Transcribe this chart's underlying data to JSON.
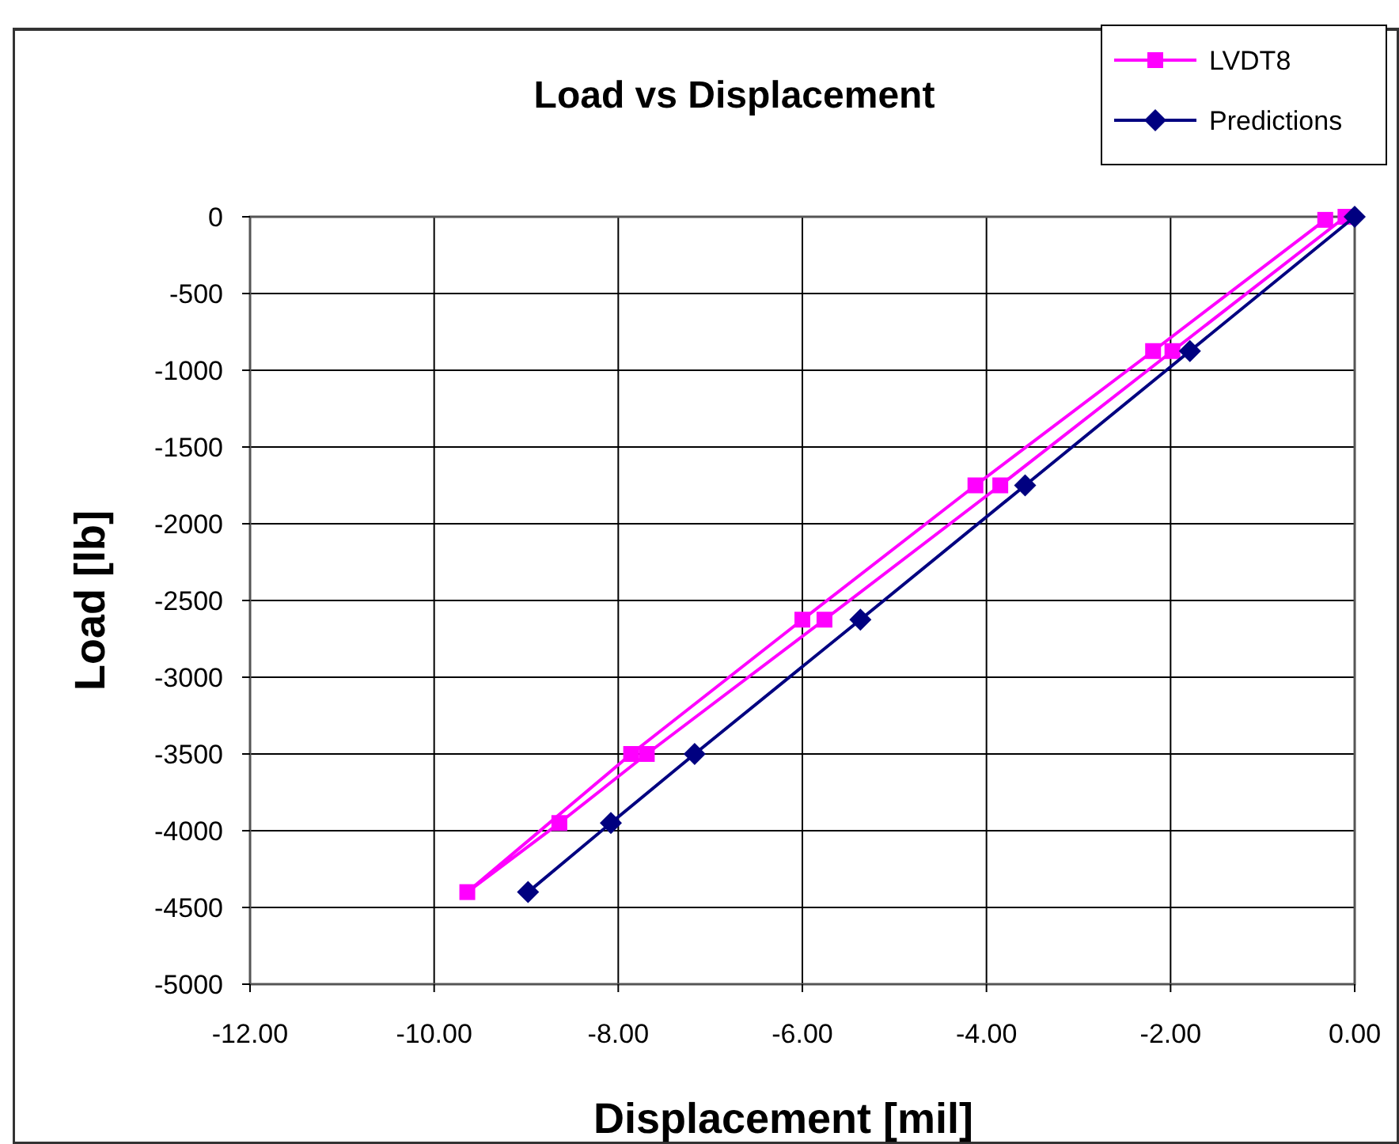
{
  "chart_data": {
    "type": "line",
    "title": "Load vs Displacement",
    "xlabel": "Displacement [mil]",
    "ylabel": "Load [lb]",
    "xlim": [
      -12,
      0
    ],
    "xticks": [
      {
        "value": -12,
        "label": "-12.00"
      },
      {
        "value": -10,
        "label": "-10.00"
      },
      {
        "value": -8,
        "label": "-8.00"
      },
      {
        "value": -6,
        "label": "-6.00"
      },
      {
        "value": -4,
        "label": "-4.00"
      },
      {
        "value": -2,
        "label": "-2.00"
      },
      {
        "value": 0,
        "label": "0.00"
      }
    ],
    "ylim": [
      -5000,
      0
    ],
    "yticks": [
      -5000,
      -4500,
      -4000,
      -3500,
      -3000,
      -2500,
      -2000,
      -1500,
      -1000,
      -500,
      0
    ],
    "grid": true,
    "legend": "top right",
    "line_style": "solid",
    "series": [
      {
        "name": "LVDT8",
        "color": "#ff00ff",
        "marker": "square",
        "x": [
          -0.1,
          -1.98,
          -3.85,
          -5.76,
          -7.69,
          -8.64,
          -9.64,
          -7.86,
          -6.0,
          -4.12,
          -2.19,
          -0.32
        ],
        "values": [
          0,
          -875,
          -1750,
          -2625,
          -3500,
          -3950,
          -4400,
          -3500,
          -2625,
          -1750,
          -875,
          -20
        ]
      },
      {
        "name": "Predictions",
        "color": "#000080",
        "marker": "diamond",
        "x": [
          0,
          -1.79,
          -3.58,
          -5.37,
          -7.17,
          -8.08,
          -8.98
        ],
        "values": [
          0,
          -875,
          -1750,
          -2625,
          -3500,
          -3950,
          -4400
        ]
      }
    ]
  }
}
